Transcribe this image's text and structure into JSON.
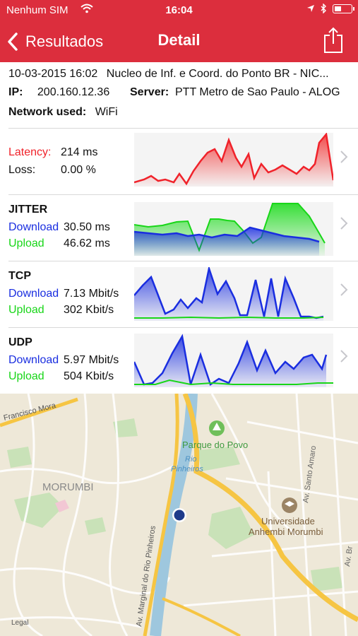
{
  "status": {
    "carrier": "Nenhum SIM",
    "time": "16:04"
  },
  "nav": {
    "back_label": "Resultados",
    "title": "Detail"
  },
  "info": {
    "datetime": "10-03-2015 16:02",
    "name": "Nucleo de Inf. e Coord. do Ponto BR - NIC...",
    "ip_label": "IP:",
    "ip": "200.160.12.36",
    "server_label": "Server:",
    "server": "PTT Metro de Sao Paulo - ALOG",
    "network_label": "Network used:",
    "network": "WiFi"
  },
  "latency": {
    "latency_label": "Latency:",
    "latency_value": "214 ms",
    "loss_label": "Loss:",
    "loss_value": "0.00 %"
  },
  "jitter": {
    "title": "JITTER",
    "download_label": "Download",
    "download_value": "30.50 ms",
    "upload_label": "Upload",
    "upload_value": "46.62 ms"
  },
  "tcp": {
    "title": "TCP",
    "download_label": "Download",
    "download_value": "7.13 Mbit/s",
    "upload_label": "Upload",
    "upload_value": "302 Kbit/s"
  },
  "udp": {
    "title": "UDP",
    "download_label": "Download",
    "download_value": "5.97 Mbit/s",
    "upload_label": "Upload",
    "upload_value": "504 Kbit/s"
  },
  "map": {
    "labels": {
      "francisco": "Francisco Mora",
      "parque": "Parque do Povo",
      "rio1": "Rio",
      "rio2": "Pinheiros",
      "morumbi": "MORUMBI",
      "santo_amaro": "Av. Santo Amaro",
      "universidade1": "Universidade",
      "universidade2": "Anhembi Morumbi",
      "marginal": "Av. Marginal do Rio Pinheiros",
      "legal": "Legal",
      "av_br": "Av. Br"
    }
  },
  "colors": {
    "brand": "#dc2e3d",
    "latency": "#f0222a",
    "download": "#1a2ee0",
    "upload": "#18d618"
  }
}
